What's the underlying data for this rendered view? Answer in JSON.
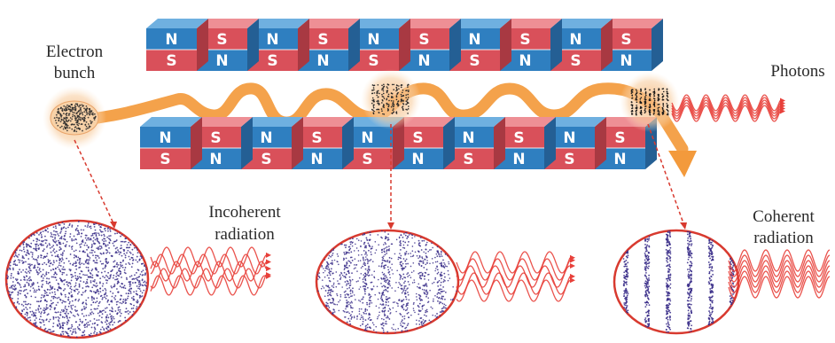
{
  "labels": {
    "electron_bunch": [
      "Electron",
      "bunch"
    ],
    "photons": "Photons",
    "incoherent": [
      "Incoherent",
      "radiation"
    ],
    "coherent": [
      "Coherent",
      "radiation"
    ]
  },
  "magnets": {
    "top_row_upper": [
      "N",
      "S",
      "N",
      "S",
      "N",
      "S",
      "N",
      "S",
      "N",
      "S"
    ],
    "top_row_lower": [
      "S",
      "N",
      "S",
      "N",
      "S",
      "N",
      "S",
      "N",
      "S",
      "N"
    ],
    "bottom_row_upper": [
      "N",
      "S",
      "N",
      "S",
      "N",
      "S",
      "N",
      "S",
      "N",
      "S"
    ],
    "bottom_row_lower": [
      "S",
      "N",
      "S",
      "N",
      "S",
      "N",
      "S",
      "N",
      "S",
      "N"
    ]
  },
  "colors": {
    "north_face": "#2f7fc0",
    "south_face": "#d9505a",
    "north_top": "#6fb0e0",
    "south_top": "#ee8f95",
    "beam": "#f39a3c",
    "wave": "#e8403a",
    "dot": "#3b2f8a",
    "arrow_guide": "#d83a2f"
  }
}
